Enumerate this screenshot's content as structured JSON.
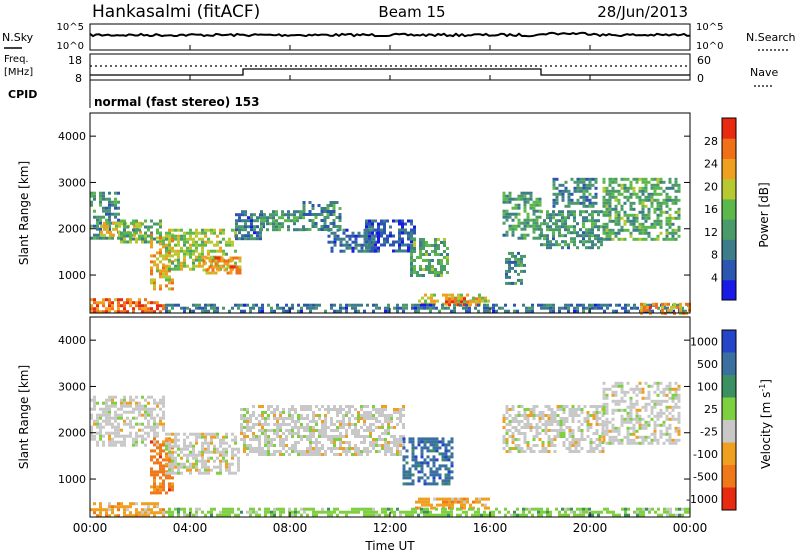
{
  "header": {
    "title": "Hankasalmi (fitACF)",
    "beam": "Beam 15",
    "date": "28/Jun/2013"
  },
  "nsky_panel": {
    "left_label": "N.Sky",
    "right_label": "N.Search",
    "left_ticks": [
      "10^5",
      "10^0"
    ],
    "right_ticks": [
      "10^5",
      "10^0"
    ]
  },
  "freq_panel": {
    "left_label_line1": "Freq.",
    "left_label_line2": "[MHz]",
    "left_ticks": [
      "18",
      "8"
    ],
    "right_label": "Nave",
    "right_ticks": [
      "60",
      "0"
    ]
  },
  "cpid": {
    "label": "CPID",
    "value": "normal (fast stereo) 153"
  },
  "time_axis": {
    "title": "Time UT",
    "ticks": [
      "00:00",
      "04:00",
      "08:00",
      "12:00",
      "16:00",
      "20:00",
      "00:00"
    ]
  },
  "chart_data": [
    {
      "type": "heatmap",
      "title": "",
      "xlabel": "Time UT",
      "ylabel": "Slant Range [km]",
      "xlim": [
        0,
        24
      ],
      "ylim": [
        180,
        4500
      ],
      "yticks": [
        "1000",
        "2000",
        "3000",
        "4000"
      ],
      "colorbar": {
        "label": "Power [dB]",
        "range": [
          0,
          32
        ],
        "ticks": [
          "4",
          "8",
          "12",
          "16",
          "20",
          "24",
          "28"
        ],
        "colors": [
          "#1a1ae6",
          "#2d56b0",
          "#3d7d8a",
          "#4a9a6a",
          "#5cb84a",
          "#b8c830",
          "#f0a020",
          "#f07018",
          "#e82a10"
        ]
      },
      "regions": [
        {
          "t0": 0.0,
          "t1": 1.2,
          "r0": 1800,
          "r1": 2800,
          "level": 10
        },
        {
          "t0": 0.4,
          "t1": 2.0,
          "r0": 1850,
          "r1": 2150,
          "level": 20
        },
        {
          "t0": 1.2,
          "t1": 2.8,
          "r0": 1700,
          "r1": 2200,
          "level": 14
        },
        {
          "t0": 2.4,
          "t1": 3.3,
          "r0": 700,
          "r1": 1900,
          "level": 22
        },
        {
          "t0": 3.0,
          "t1": 5.8,
          "r0": 1100,
          "r1": 2000,
          "level": 18
        },
        {
          "t0": 4.5,
          "t1": 6.0,
          "r0": 1050,
          "r1": 1400,
          "level": 24
        },
        {
          "t0": 5.8,
          "t1": 7.0,
          "r0": 1800,
          "r1": 2400,
          "level": 8
        },
        {
          "t0": 6.8,
          "t1": 8.5,
          "r0": 1950,
          "r1": 2400,
          "level": 12
        },
        {
          "t0": 8.5,
          "t1": 10.0,
          "r0": 2000,
          "r1": 2600,
          "level": 10
        },
        {
          "t0": 9.5,
          "t1": 11.5,
          "r0": 1500,
          "r1": 2000,
          "level": 7
        },
        {
          "t0": 11.0,
          "t1": 13.0,
          "r0": 1500,
          "r1": 2200,
          "level": 6
        },
        {
          "t0": 12.8,
          "t1": 14.3,
          "r0": 1000,
          "r1": 1800,
          "level": 14
        },
        {
          "t0": 13.0,
          "t1": 16.0,
          "r0": 380,
          "r1": 600,
          "level": 20
        },
        {
          "t0": 14.2,
          "t1": 15.6,
          "r0": 380,
          "r1": 520,
          "level": 26
        },
        {
          "t0": 16.5,
          "t1": 18.0,
          "r0": 1800,
          "r1": 2800,
          "level": 12
        },
        {
          "t0": 16.6,
          "t1": 17.4,
          "r0": 800,
          "r1": 1500,
          "level": 10
        },
        {
          "t0": 18.0,
          "t1": 20.5,
          "r0": 1600,
          "r1": 2400,
          "level": 12
        },
        {
          "t0": 18.5,
          "t1": 20.2,
          "r0": 2500,
          "r1": 3100,
          "level": 10
        },
        {
          "t0": 20.5,
          "t1": 23.6,
          "r0": 1800,
          "r1": 3100,
          "level": 14
        },
        {
          "t0": 0.0,
          "t1": 3.0,
          "r0": 200,
          "r1": 500,
          "level": 26
        },
        {
          "t0": 3.0,
          "t1": 24.0,
          "r0": 200,
          "r1": 380,
          "level": 8
        },
        {
          "t0": 22.0,
          "t1": 24.0,
          "r0": 200,
          "r1": 400,
          "level": 24
        }
      ]
    },
    {
      "type": "heatmap",
      "title": "",
      "xlabel": "Time UT",
      "ylabel": "Slant Range [km]",
      "xlim": [
        0,
        24
      ],
      "ylim": [
        180,
        4500
      ],
      "yticks": [
        "1000",
        "2000",
        "3000",
        "4000"
      ],
      "colorbar": {
        "label": "Velocity [m s^-1]",
        "ticks": [
          "1000",
          "500",
          "100",
          "25",
          "-25",
          "-100",
          "-500",
          "-1000"
        ],
        "colors": [
          "#2545c8",
          "#3a70a0",
          "#3a9060",
          "#7ed040",
          "#c8c8c8",
          "#f0a020",
          "#f07818",
          "#e82a10"
        ]
      },
      "regions": [
        {
          "t0": 0.0,
          "t1": 3.0,
          "r0": 1700,
          "r1": 2800,
          "category": "-25"
        },
        {
          "t0": 2.4,
          "t1": 3.3,
          "r0": 700,
          "r1": 1900,
          "category": "-500"
        },
        {
          "t0": 3.0,
          "t1": 6.0,
          "r0": 1100,
          "r1": 2000,
          "category": "-25"
        },
        {
          "t0": 6.0,
          "t1": 12.5,
          "r0": 1500,
          "r1": 2600,
          "category": "-25"
        },
        {
          "t0": 12.5,
          "t1": 14.5,
          "r0": 900,
          "r1": 1900,
          "category": "500"
        },
        {
          "t0": 13.0,
          "t1": 16.0,
          "r0": 380,
          "r1": 600,
          "category": "-100"
        },
        {
          "t0": 16.5,
          "t1": 20.5,
          "r0": 1600,
          "r1": 2600,
          "category": "-25"
        },
        {
          "t0": 20.5,
          "t1": 23.6,
          "r0": 1800,
          "r1": 3100,
          "category": "-25"
        },
        {
          "t0": 0.0,
          "t1": 3.0,
          "r0": 200,
          "r1": 500,
          "category": "-100"
        },
        {
          "t0": 3.0,
          "t1": 24.0,
          "r0": 200,
          "r1": 380,
          "category": "25"
        }
      ]
    }
  ]
}
